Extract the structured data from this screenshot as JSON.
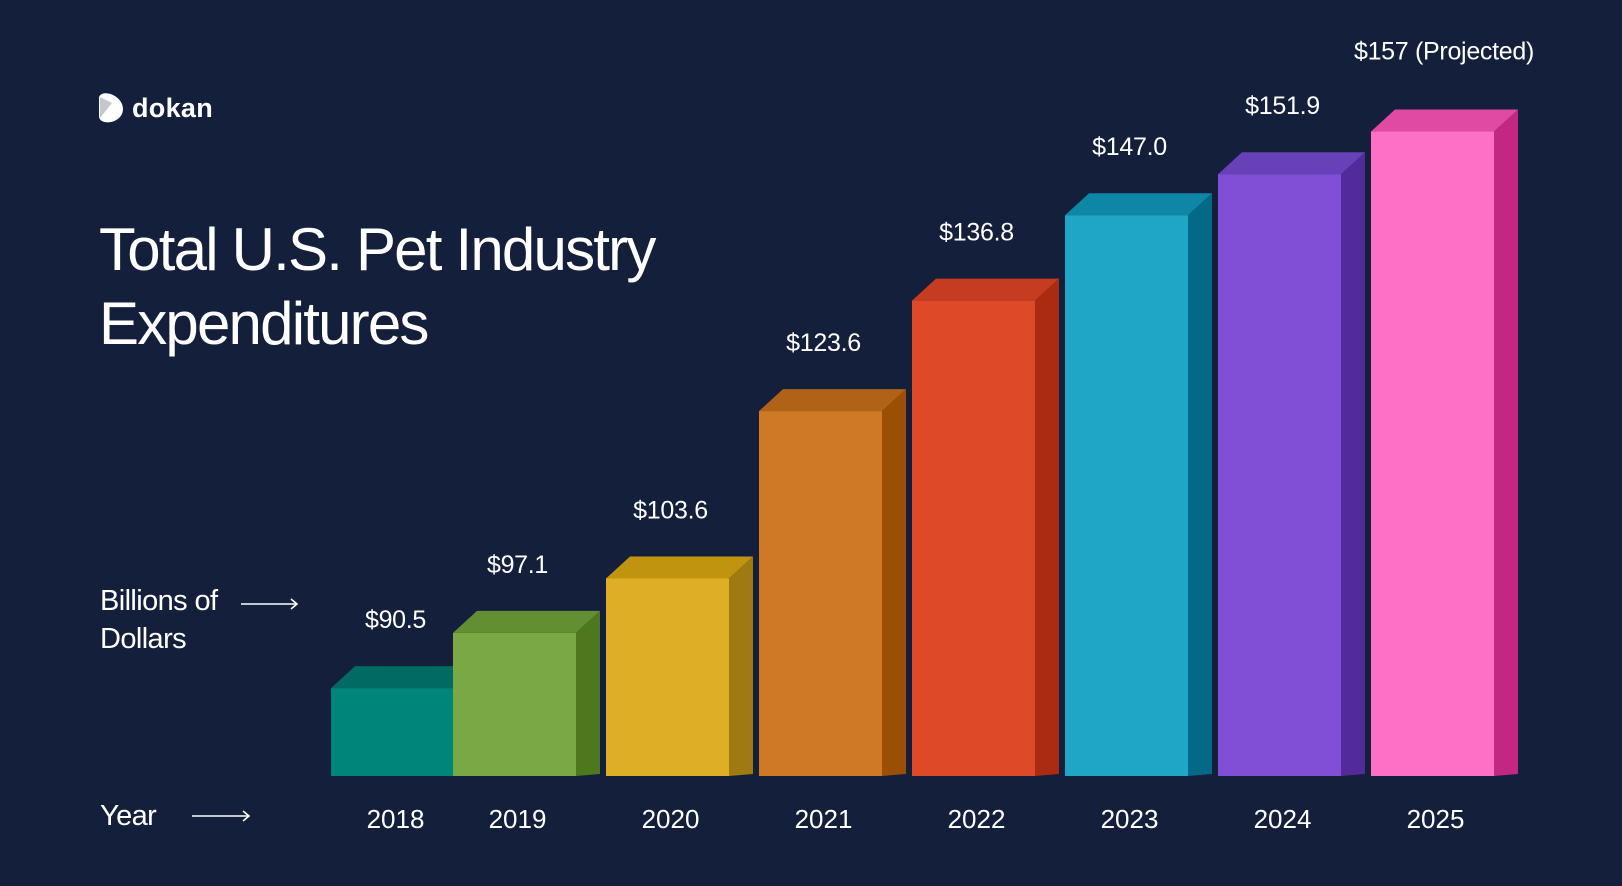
{
  "brand": {
    "name": "dokan",
    "icon": "dokan-logo-icon"
  },
  "title_lines": [
    "Total U.S. Pet Industry",
    "Expenditures"
  ],
  "unit_label_lines": [
    "Billions of",
    "Dollars"
  ],
  "year_axis_label": "Year",
  "chart_data": {
    "type": "bar",
    "title": "Total U.S. Pet Industry Expenditures",
    "xlabel": "Year",
    "ylabel": "Billions of Dollars",
    "categories": [
      "2018",
      "2019",
      "2020",
      "2021",
      "2022",
      "2023",
      "2024",
      "2025"
    ],
    "values": [
      90.5,
      97.1,
      103.6,
      123.6,
      136.8,
      147.0,
      151.9,
      157
    ],
    "value_labels": [
      "$90.5",
      "$97.1",
      "$103.6",
      "$123.6",
      "$136.8",
      "$147.0",
      "$151.9",
      "$157 (Projected)"
    ],
    "colors": [
      {
        "front": "#00857a",
        "side": "#005e58",
        "top": "#006a63"
      },
      {
        "front": "#7aa844",
        "side": "#4e781e",
        "top": "#618f31"
      },
      {
        "front": "#deae25",
        "side": "#9e7a10",
        "top": "#c1940f"
      },
      {
        "front": "#cf7927",
        "side": "#9a4f04",
        "top": "#b06317"
      },
      {
        "front": "#de4a27",
        "side": "#ab2b12",
        "top": "#c63c20"
      },
      {
        "front": "#1fa5c6",
        "side": "#026987",
        "top": "#0d87a5"
      },
      {
        "front": "#814fd6",
        "side": "#532a9a",
        "top": "#6841b8"
      },
      {
        "front": "#fe6fc6",
        "side": "#c22784",
        "top": "#e04aa3"
      }
    ],
    "legend": "none",
    "grid": false
  }
}
